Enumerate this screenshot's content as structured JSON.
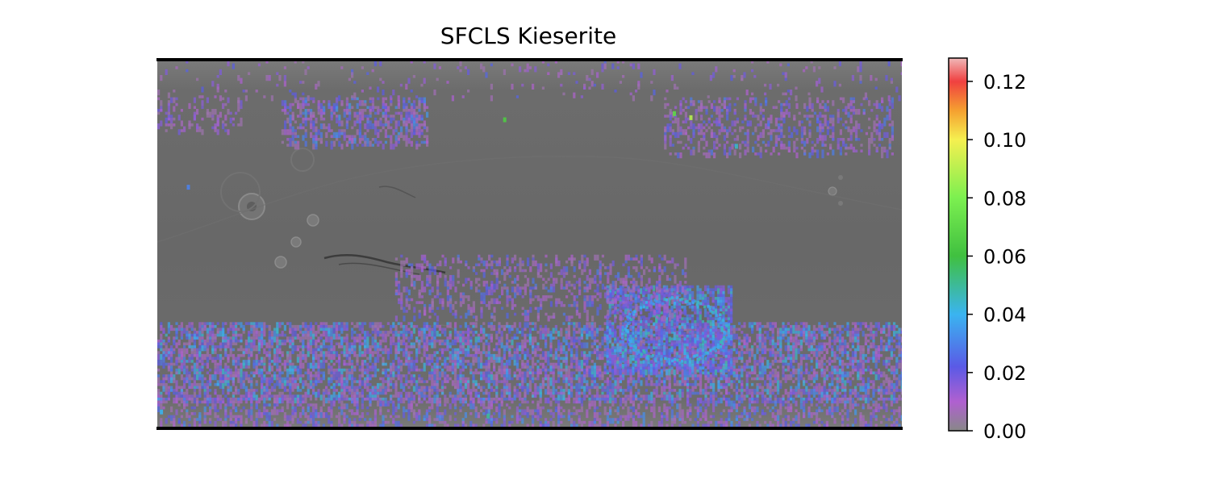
{
  "chart_data": {
    "type": "heatmap",
    "title": "SFCLS Kieserite",
    "xlabel": "",
    "ylabel": "",
    "basemap": "grayscale shaded-relief global map of Mars (equirectangular)",
    "colorbar": {
      "min": 0.0,
      "max": 0.128,
      "ticks": [
        0.0,
        0.02,
        0.04,
        0.06,
        0.08,
        0.1,
        0.12
      ],
      "tick_labels": [
        "0.00",
        "0.02",
        "0.04",
        "0.06",
        "0.08",
        "0.10",
        "0.12"
      ],
      "colormap_stops": [
        {
          "value": 0.0,
          "color": "#888888"
        },
        {
          "value": 0.01,
          "color": "#b060d0"
        },
        {
          "value": 0.022,
          "color": "#5a5ae6"
        },
        {
          "value": 0.04,
          "color": "#3ab4f0"
        },
        {
          "value": 0.06,
          "color": "#40c040"
        },
        {
          "value": 0.08,
          "color": "#7cf050"
        },
        {
          "value": 0.1,
          "color": "#f5f050"
        },
        {
          "value": 0.11,
          "color": "#f5a030"
        },
        {
          "value": 0.12,
          "color": "#f04040"
        },
        {
          "value": 0.128,
          "color": "#f0b8b8"
        }
      ]
    },
    "regions": [
      {
        "lon_range": [
          -180,
          180
        ],
        "lat_range": [
          -75,
          -38
        ],
        "value_range": [
          0.005,
          0.045
        ],
        "density": 0.55
      },
      {
        "lon_range": [
          -180,
          180
        ],
        "lat_range": [
          -88,
          -75
        ],
        "value_range": [
          0.005,
          0.035
        ],
        "density": 0.35
      },
      {
        "lon_range": [
          37,
          97
        ],
        "lat_range": [
          -62,
          -20
        ],
        "value_range": [
          0.015,
          0.048
        ],
        "density": 0.65
      },
      {
        "lon_range": [
          -65,
          75
        ],
        "lat_range": [
          -35,
          -5
        ],
        "value_range": [
          0.005,
          0.03
        ],
        "density": 0.28
      },
      {
        "lon_range": [
          -120,
          -50
        ],
        "lat_range": [
          48,
          72
        ],
        "value_range": [
          0.005,
          0.035
        ],
        "density": 0.45
      },
      {
        "lon_range": [
          65,
          175
        ],
        "lat_range": [
          45,
          72
        ],
        "value_range": [
          0.005,
          0.03
        ],
        "density": 0.3
      },
      {
        "lon_range": [
          -180,
          -140
        ],
        "lat_range": [
          55,
          72
        ],
        "value_range": [
          0.005,
          0.02
        ],
        "density": 0.25
      },
      {
        "lon_range": [
          -180,
          180
        ],
        "lat_range": [
          72,
          90
        ],
        "value_range": [
          0.005,
          0.025
        ],
        "density": 0.06
      }
    ],
    "isolated_points": [
      {
        "lon": -12,
        "lat": 61,
        "value": 0.065
      },
      {
        "lon": 70,
        "lat": 64,
        "value": 0.07
      },
      {
        "lon": 78,
        "lat": 62,
        "value": 0.09
      },
      {
        "lon": 100,
        "lat": 48,
        "value": 0.045
      },
      {
        "lon": -165,
        "lat": 28,
        "value": 0.03
      },
      {
        "lon": -178,
        "lat": -82,
        "value": 0.04
      },
      {
        "lon": -20,
        "lat": -84,
        "value": 0.05
      }
    ]
  }
}
